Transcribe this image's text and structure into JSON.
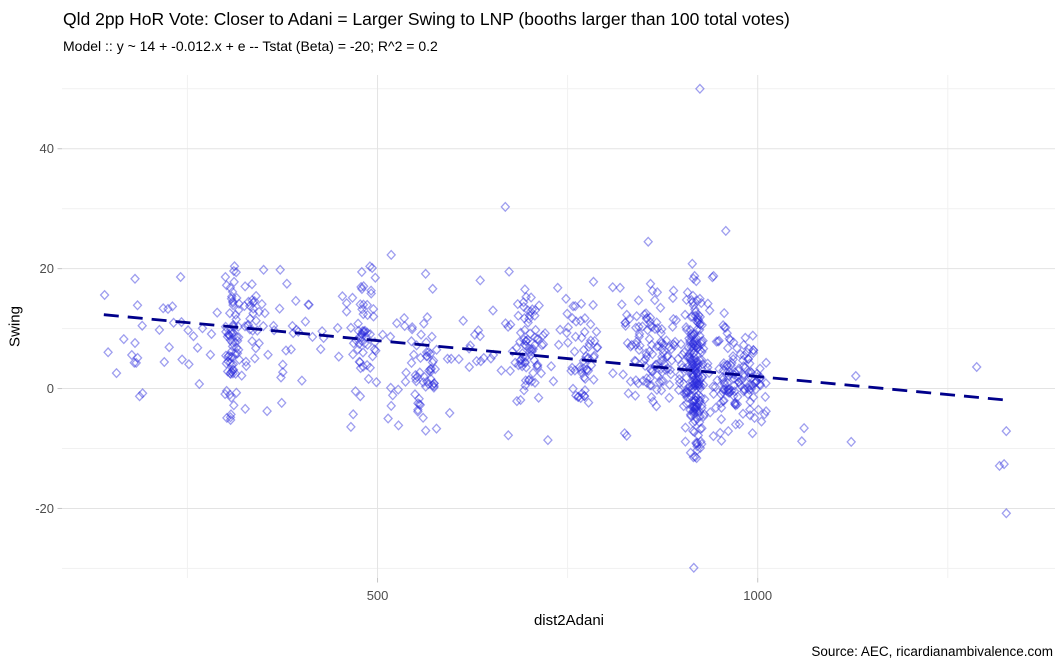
{
  "header": {
    "title": "Qld 2pp HoR Vote: Closer to Adani = Larger Swing to LNP (booths larger than 100 total votes)",
    "subtitle": "Model :: y ~ 14 + -0.012.x + e -- Tstat (Beta) = -20; R^2 = 0.2"
  },
  "source": "Source: AEC, ricardianambivalence.com",
  "chart_data": {
    "type": "scatter",
    "title": "Qld 2pp HoR Vote: Closer to Adani = Larger Swing to LNP (booths larger than 100 total votes)",
    "subtitle": "Model :: y ~ 14 + -0.012.x + e -- Tstat (Beta) = -20; R^2 = 0.2",
    "xlabel": "dist2Adani",
    "ylabel": "Swing",
    "xlim": [
      85,
      1391
    ],
    "ylim": [
      -31.6,
      52.3
    ],
    "x_ticks": {
      "major": [
        500,
        1000
      ],
      "minor": [
        250,
        750,
        1250
      ]
    },
    "y_ticks": {
      "major": [
        -20,
        0,
        20,
        40
      ],
      "minor": [
        -30,
        -10,
        10,
        30,
        50
      ]
    },
    "grid": true,
    "legend": "none",
    "point_shape": "open-diamond",
    "point_color": "rgba(40,40,220,0.45)",
    "grid_major_color": "#e3e3e3",
    "grid_minor_color": "#f1f1f1",
    "tick_label_color": "#4d4d4d",
    "trend": {
      "style": "dashed",
      "color": "#00008b",
      "model_text": "y ~ 14 + -0.012.x",
      "intercept": 14,
      "slope": -0.012,
      "x_start": 140,
      "x_end": 1330
    },
    "outlier_points": [
      [
        141,
        15.6
      ],
      [
        181,
        18.3
      ],
      [
        181,
        7.6
      ],
      [
        226,
        6.9
      ],
      [
        241,
        18.6
      ],
      [
        187,
        -1.3
      ],
      [
        191,
        -0.8
      ],
      [
        311,
        19.6
      ],
      [
        311,
        -2.8
      ],
      [
        326,
        -3.4
      ],
      [
        372,
        19.8
      ],
      [
        374,
        -2.4
      ],
      [
        465,
        -6.4
      ],
      [
        468,
        -4.3
      ],
      [
        493,
        20.1
      ],
      [
        518,
        22.3
      ],
      [
        518,
        -2.9
      ],
      [
        668,
        30.3
      ],
      [
        672,
        -7.8
      ],
      [
        673,
        19.5
      ],
      [
        724,
        -8.6
      ],
      [
        737,
        16.8
      ],
      [
        784,
        17.8
      ],
      [
        819,
        16.8
      ],
      [
        856,
        24.5
      ],
      [
        916,
        -29.9
      ],
      [
        924,
        50
      ],
      [
        958,
        26.3
      ],
      [
        1005,
        -5.5
      ],
      [
        1010,
        -1.4
      ],
      [
        1011,
        4.3
      ],
      [
        1011,
        -3.8
      ],
      [
        1058,
        -8.8
      ],
      [
        1061,
        -6.6
      ],
      [
        1123,
        -8.9
      ],
      [
        1129,
        2.1
      ],
      [
        1288,
        3.6
      ],
      [
        1318,
        -12.9
      ],
      [
        1324,
        -12.6
      ],
      [
        1327,
        -7.1
      ],
      [
        1327,
        -20.8
      ]
    ],
    "point_clusters": [
      {
        "x_range": [
          140,
          290
        ],
        "n": 26,
        "y_mean": 9,
        "y_sd": 5
      },
      {
        "x_mean": 309,
        "x_sd": 5,
        "n": 72,
        "y_mean": 7,
        "y_sd": 5.5
      },
      {
        "x_mean": 333,
        "x_sd": 7,
        "n": 28,
        "y_mean": 12,
        "y_sd": 4
      },
      {
        "x_range": [
          350,
          462
        ],
        "n": 30,
        "y_mean": 8,
        "y_sd": 5
      },
      {
        "x_mean": 481,
        "x_sd": 9,
        "n": 55,
        "y_mean": 9,
        "y_sd": 4.5
      },
      {
        "x_range": [
          505,
          645
        ],
        "n": 40,
        "y_mean": 7,
        "y_sd": 5.5
      },
      {
        "x_mean": 561,
        "x_sd": 12,
        "n": 40,
        "y_mean": 3,
        "y_sd": 4
      },
      {
        "x_range": [
          645,
          800
        ],
        "n": 35,
        "y_mean": 7,
        "y_sd": 6
      },
      {
        "x_mean": 700,
        "x_sd": 7,
        "n": 60,
        "y_mean": 7,
        "y_sd": 4.5
      },
      {
        "x_mean": 770,
        "x_sd": 9,
        "n": 45,
        "y_mean": 5,
        "y_sd": 4.5
      },
      {
        "x_mean": 862,
        "x_sd": 22,
        "n": 120,
        "y_mean": 6,
        "y_sd": 5.5
      },
      {
        "x_mean": 918,
        "x_sd": 6,
        "n": 170,
        "y_mean": 2.5,
        "y_sd": 6.5
      },
      {
        "x_mean": 925,
        "x_sd": 30,
        "n": 60,
        "y_mean": 4,
        "y_sd": 7
      },
      {
        "x_mean": 965,
        "x_sd": 10,
        "n": 70,
        "y_mean": 0.5,
        "y_sd": 4
      },
      {
        "x_mean": 993,
        "x_sd": 8,
        "n": 45,
        "y_mean": 0.5,
        "y_sd": 3.5
      }
    ],
    "seed": 42
  }
}
